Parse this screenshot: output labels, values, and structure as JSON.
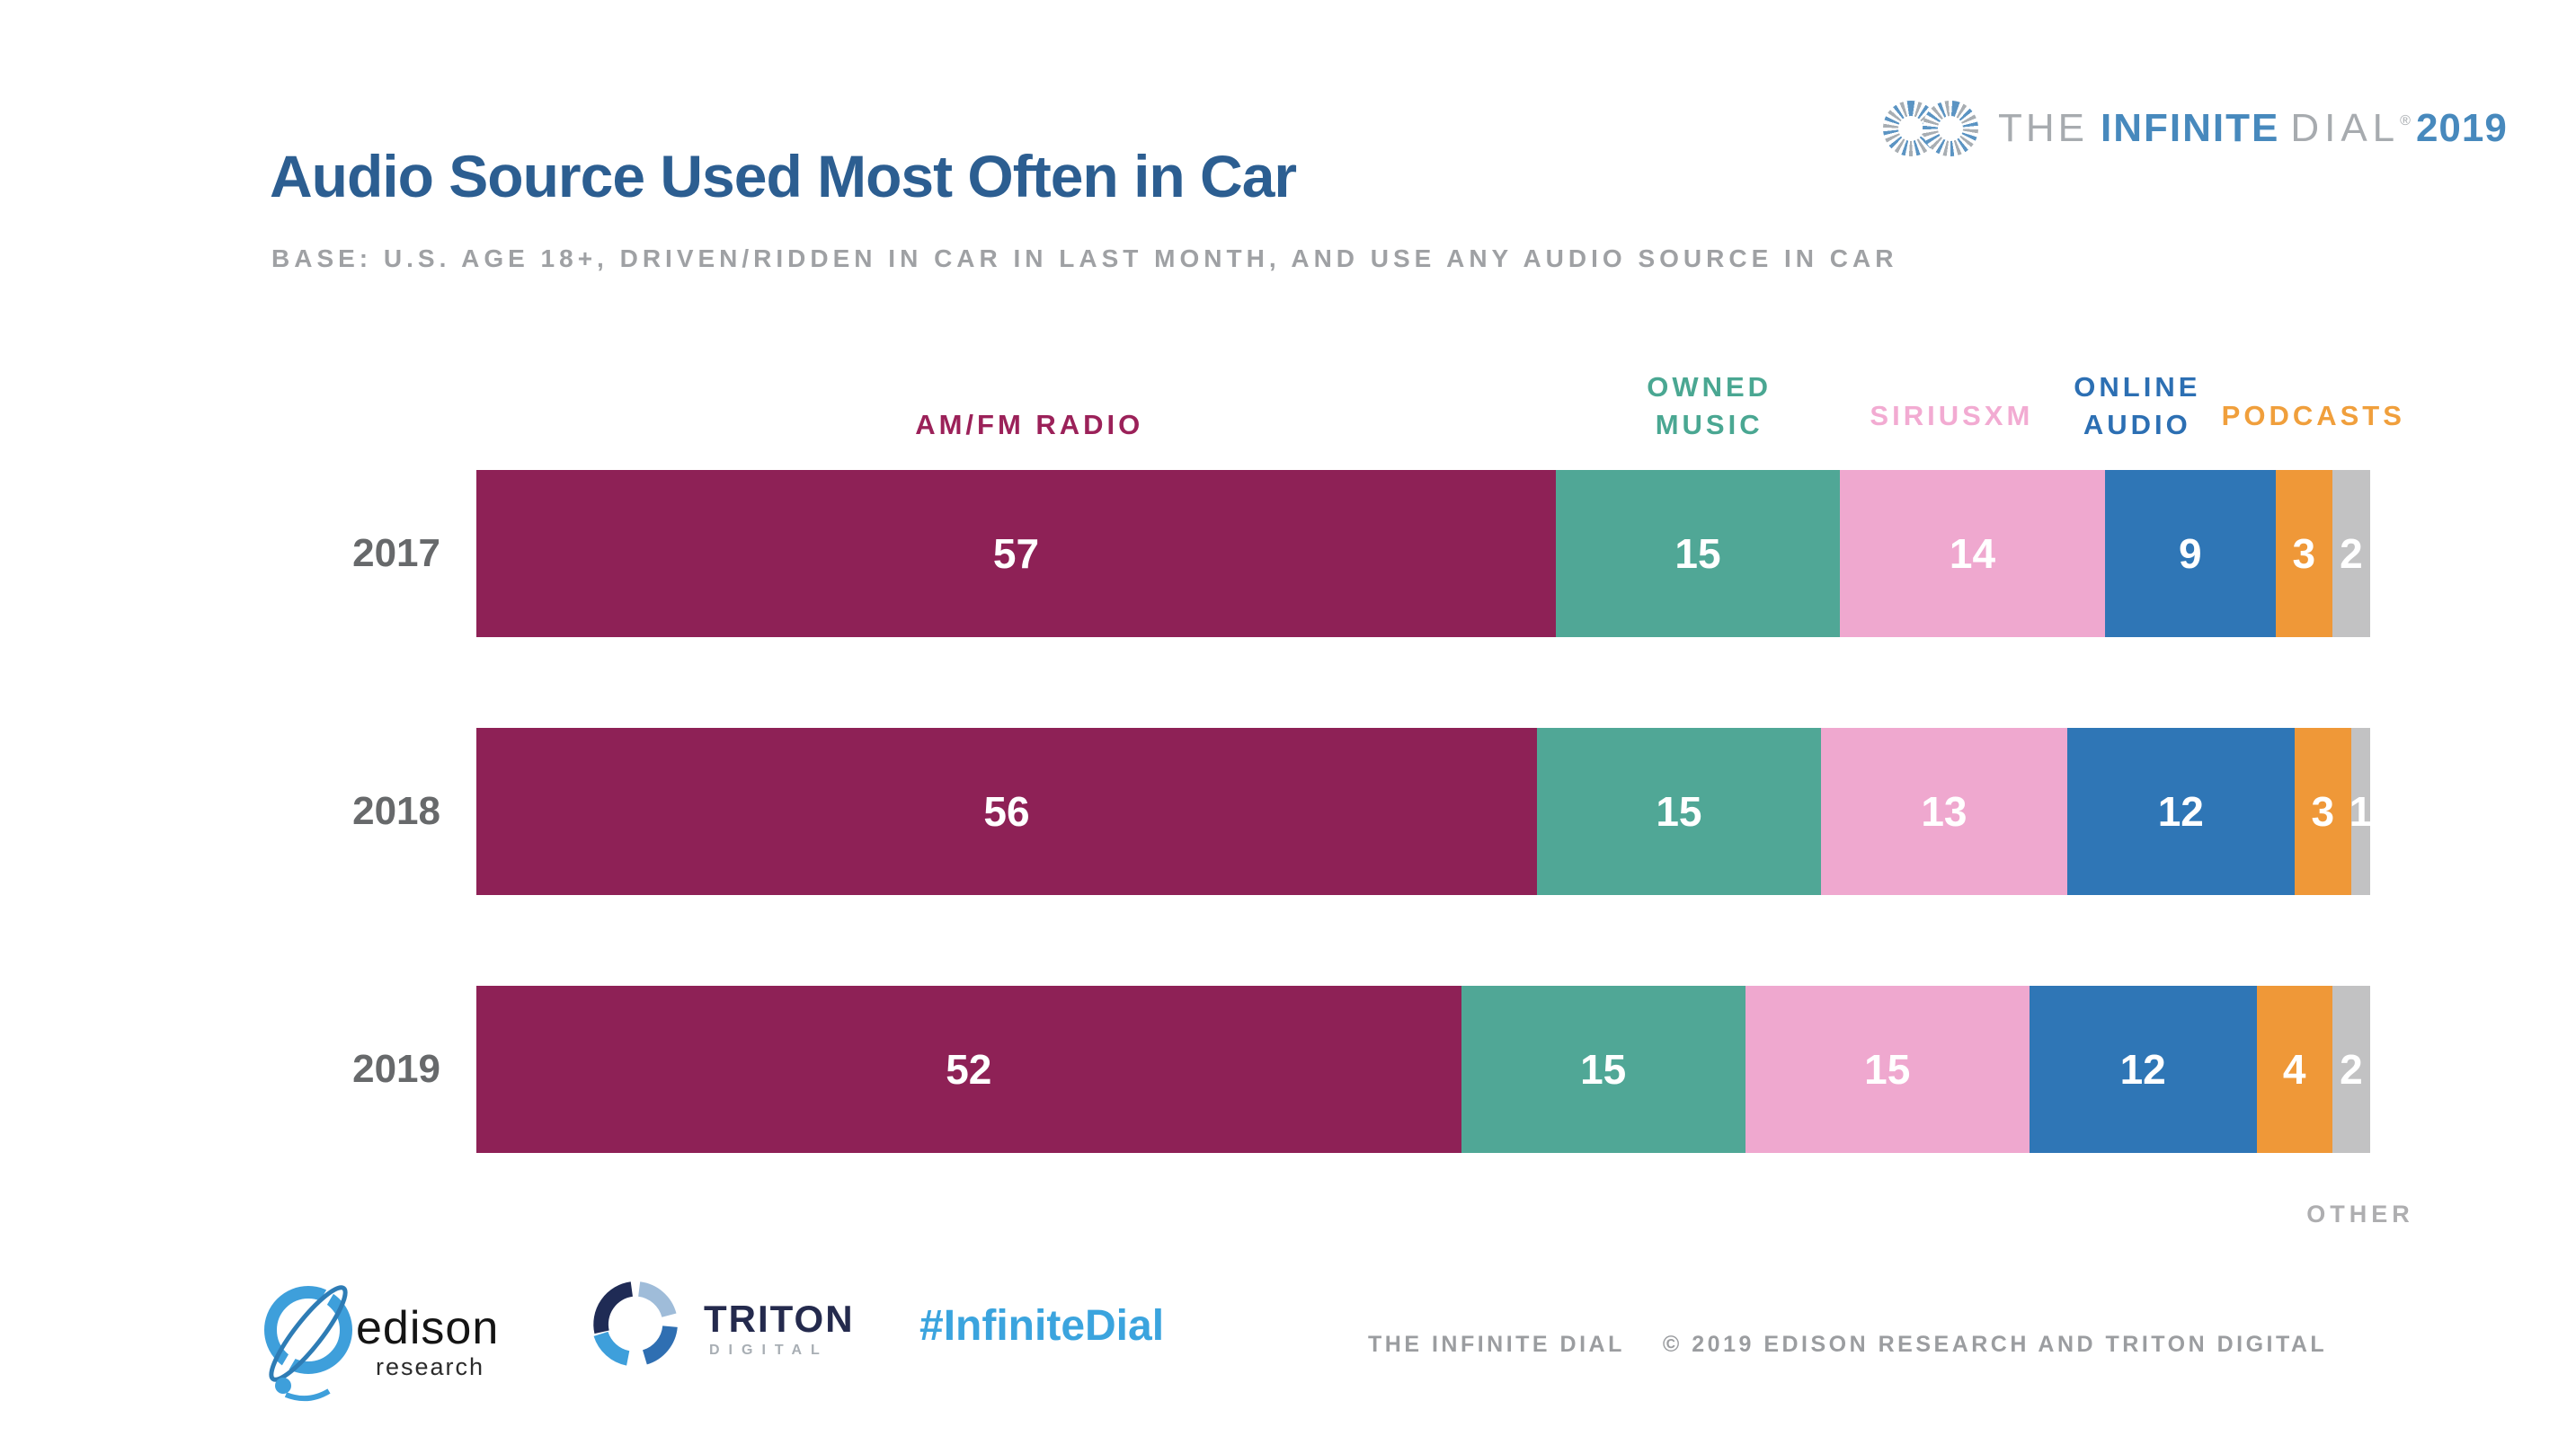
{
  "header": {
    "title": "Audio Source Used Most Often in Car",
    "base_note": "BASE: U.S. AGE 18+, DRIVEN/RIDDEN IN CAR IN LAST MONTH, AND USE ANY AUDIO SOURCE IN CAR"
  },
  "brand": {
    "the": "THE",
    "infinite": "INFINITE",
    "dial": "DIAL",
    "reg": "®",
    "year": "2019"
  },
  "chart_data": {
    "type": "bar",
    "orientation": "horizontal-stacked",
    "title": "Audio Source Used Most Often in Car",
    "categories": [
      "2017",
      "2018",
      "2019"
    ],
    "series": [
      {
        "name": "AM/FM RADIO",
        "color": "#8E2156",
        "values": [
          57,
          56,
          52
        ]
      },
      {
        "name": "OWNED MUSIC",
        "color": "#50A796",
        "values": [
          15,
          15,
          15
        ]
      },
      {
        "name": "SIRIUSXM",
        "color": "#EFA8CF",
        "values": [
          14,
          13,
          15
        ]
      },
      {
        "name": "ONLINE AUDIO",
        "color": "#2F76B6",
        "values": [
          9,
          12,
          12
        ]
      },
      {
        "name": "PODCASTS",
        "color": "#EF9838",
        "values": [
          3,
          3,
          4
        ]
      },
      {
        "name": "OTHER",
        "color": "#C2C2C3",
        "values": [
          2,
          1,
          2
        ]
      }
    ],
    "xlim": [
      0,
      100
    ],
    "value_labels": "white-inside-segments",
    "grid": false,
    "legend_position": "above-first-bar",
    "legend": [
      {
        "lines": [
          "AM/FM RADIO"
        ],
        "color": "#9B2159",
        "center_pct": 29.2,
        "lift": false
      },
      {
        "lines": [
          "OWNED",
          "MUSIC"
        ],
        "color": "#4AA792",
        "center_pct": 65.1,
        "lift": false
      },
      {
        "lines": [
          "SIRIUSXM"
        ],
        "color": "#F2ABD2",
        "center_pct": 77.9,
        "lift": true
      },
      {
        "lines": [
          "ONLINE",
          "AUDIO"
        ],
        "color": "#2C6FB3",
        "center_pct": 87.7,
        "lift": false
      },
      {
        "lines": [
          "PODCASTS"
        ],
        "color": "#F09F3C",
        "center_pct": 97.0,
        "lift": true
      }
    ],
    "other_label": "OTHER"
  },
  "footer": {
    "edison_name": "edison",
    "edison_sub": "research",
    "triton_name": "TRITON",
    "triton_sub": "DIGITAL",
    "hashtag": "#InfiniteDial",
    "credit_brand": "THE INFINITE DIAL",
    "credit_copyright": "© 2019 EDISON RESEARCH AND TRITON DIGITAL"
  }
}
